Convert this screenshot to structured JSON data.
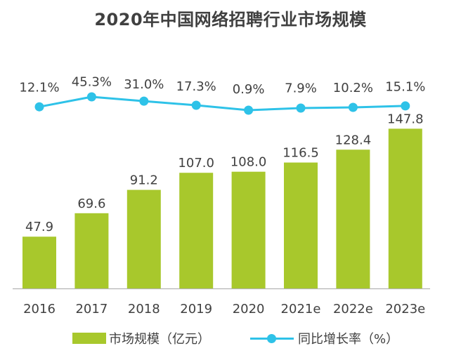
{
  "chart_data": {
    "title": "2020年中国网络招聘行业市场规模",
    "type": "bar",
    "categories": [
      "2016",
      "2017",
      "2018",
      "2019",
      "2020",
      "2021e",
      "2022e",
      "2023e"
    ],
    "series": [
      {
        "name": "市场规模（亿元）",
        "type": "bar",
        "values": [
          47.9,
          69.6,
          91.2,
          107.0,
          108.0,
          116.5,
          128.4,
          147.8
        ],
        "labels": [
          "47.9",
          "69.6",
          "91.2",
          "107.0",
          "108.0",
          "116.5",
          "128.4",
          "147.8"
        ],
        "color": "#a8c82c"
      },
      {
        "name": "同比增长率（%）",
        "type": "line",
        "values": [
          12.1,
          45.3,
          31.0,
          17.3,
          0.9,
          7.9,
          10.2,
          15.1
        ],
        "labels": [
          "12.1%",
          "45.3%",
          "31.0%",
          "17.3%",
          "0.9%",
          "7.9%",
          "10.2%",
          "15.1%"
        ],
        "color": "#2ec2e8"
      }
    ],
    "ylim": [
      0,
      150
    ],
    "grid": false,
    "legend_position": "bottom"
  },
  "colors": {
    "axis": "#b3b3b3",
    "text": "#404040"
  }
}
